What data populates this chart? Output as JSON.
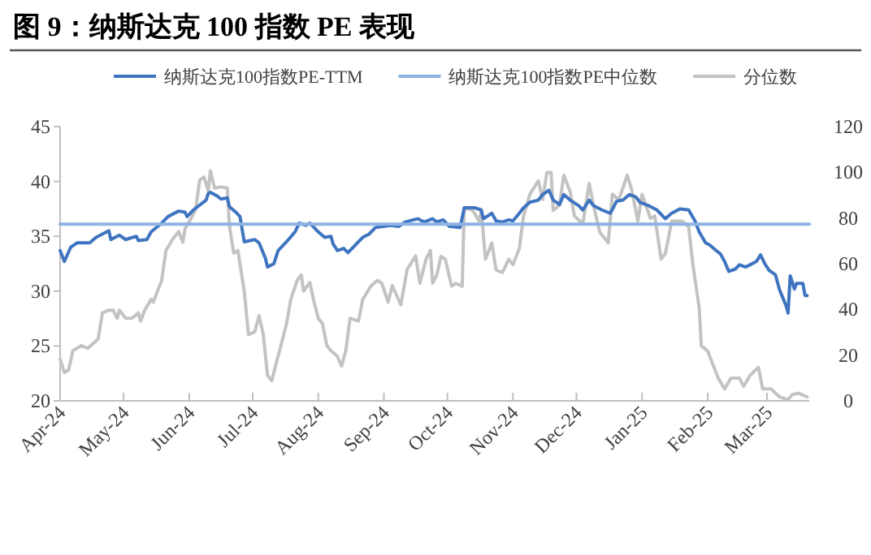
{
  "chart_data": {
    "type": "line",
    "title": "图 9：纳斯达克 100 指数 PE 表现",
    "legend": "top",
    "xlim": [
      "2024-04-01",
      "2025-03-21"
    ],
    "xticks": [
      {
        "value": "2024-04-01",
        "label": "Apr-24"
      },
      {
        "value": "2024-05-01",
        "label": "May-24"
      },
      {
        "value": "2024-06-01",
        "label": "Jun-24"
      },
      {
        "value": "2024-07-01",
        "label": "Jul-24"
      },
      {
        "value": "2024-08-01",
        "label": "Aug-24"
      },
      {
        "value": "2024-09-01",
        "label": "Sep-24"
      },
      {
        "value": "2024-10-01",
        "label": "Oct-24"
      },
      {
        "value": "2024-11-01",
        "label": "Nov-24"
      },
      {
        "value": "2024-12-01",
        "label": "Dec-24"
      },
      {
        "value": "2025-01-01",
        "label": "Jan-25"
      },
      {
        "value": "2025-02-01",
        "label": "Feb-25"
      },
      {
        "value": "2025-03-01",
        "label": "Mar-25"
      }
    ],
    "ylim": [
      20,
      45
    ],
    "yticks": [
      20,
      25,
      30,
      35,
      40,
      45
    ],
    "y2lim": [
      0,
      120
    ],
    "y2ticks": [
      0,
      20,
      40,
      60,
      80,
      100,
      120
    ],
    "series": [
      {
        "name": "纳斯达克100指数PE-TTM",
        "color": "#3f74c0",
        "x": [
          "2024-04-01",
          "2024-04-03",
          "2024-04-06",
          "2024-04-09",
          "2024-04-15",
          "2024-04-18",
          "2024-04-23",
          "2024-04-24",
          "2024-04-25",
          "2024-04-29",
          "2024-05-02",
          "2024-05-07",
          "2024-05-08",
          "2024-05-12",
          "2024-05-14",
          "2024-05-19",
          "2024-05-22",
          "2024-05-27",
          "2024-05-30",
          "2024-05-31",
          "2024-06-03",
          "2024-06-09",
          "2024-06-10",
          "2024-06-11",
          "2024-06-14",
          "2024-06-16",
          "2024-06-19",
          "2024-06-20",
          "2024-06-23",
          "2024-06-25",
          "2024-06-27",
          "2024-07-02",
          "2024-07-04",
          "2024-07-07",
          "2024-07-08",
          "2024-07-11",
          "2024-07-13",
          "2024-07-17",
          "2024-07-21",
          "2024-07-23",
          "2024-07-26",
          "2024-07-28",
          "2024-08-01",
          "2024-08-04",
          "2024-08-07",
          "2024-08-08",
          "2024-08-10",
          "2024-08-13",
          "2024-08-15",
          "2024-08-18",
          "2024-08-20",
          "2024-08-22",
          "2024-08-25",
          "2024-08-28",
          "2024-09-01",
          "2024-09-04",
          "2024-09-08",
          "2024-09-11",
          "2024-09-15",
          "2024-09-17",
          "2024-09-20",
          "2024-09-24",
          "2024-09-26",
          "2024-09-29",
          "2024-10-02",
          "2024-10-07",
          "2024-10-09",
          "2024-10-14",
          "2024-10-17",
          "2024-10-18",
          "2024-10-22",
          "2024-10-24",
          "2024-10-27",
          "2024-10-30",
          "2024-11-01",
          "2024-11-04",
          "2024-11-06",
          "2024-11-09",
          "2024-11-13",
          "2024-11-15",
          "2024-11-18",
          "2024-11-20",
          "2024-11-23",
          "2024-11-25",
          "2024-11-28",
          "2024-12-02",
          "2024-12-04",
          "2024-12-07",
          "2024-12-09",
          "2024-12-13",
          "2024-12-17",
          "2024-12-20",
          "2024-12-23",
          "2024-12-26",
          "2024-12-29",
          "2024-12-31",
          "2025-01-04",
          "2025-01-08",
          "2025-01-12",
          "2025-01-15",
          "2025-01-19",
          "2025-01-23",
          "2025-01-26",
          "2025-01-28",
          "2025-01-31",
          "2025-02-02",
          "2025-02-05",
          "2025-02-07",
          "2025-02-09",
          "2025-02-11",
          "2025-02-14",
          "2025-02-16",
          "2025-02-19",
          "2025-02-21",
          "2025-02-24",
          "2025-02-26",
          "2025-02-28",
          "2025-03-02",
          "2025-03-05",
          "2025-03-07",
          "2025-03-10",
          "2025-03-11",
          "2025-03-12",
          "2025-03-14",
          "2025-03-15",
          "2025-03-18",
          "2025-03-19",
          "2025-03-20"
        ],
        "values": [
          33.7,
          32.7,
          34.0,
          34.4,
          34.4,
          34.9,
          35.4,
          35.5,
          34.7,
          35.1,
          34.7,
          35.0,
          34.6,
          34.7,
          35.4,
          36.2,
          36.8,
          37.3,
          37.2,
          36.8,
          37.4,
          38.3,
          38.9,
          39.0,
          38.7,
          38.4,
          38.5,
          37.7,
          37.2,
          36.8,
          34.5,
          34.7,
          34.4,
          33.0,
          32.2,
          32.5,
          33.7,
          34.5,
          35.4,
          36.2,
          36.0,
          36.2,
          35.4,
          34.9,
          35.0,
          34.3,
          33.7,
          33.9,
          33.5,
          34.1,
          34.5,
          34.9,
          35.2,
          35.8,
          35.9,
          36.0,
          35.9,
          36.3,
          36.5,
          36.6,
          36.3,
          36.6,
          36.3,
          36.5,
          35.9,
          35.8,
          37.6,
          37.6,
          37.4,
          36.6,
          37.1,
          36.4,
          36.3,
          36.5,
          36.4,
          37.1,
          37.6,
          38.1,
          38.3,
          38.8,
          39.2,
          38.3,
          37.9,
          38.8,
          38.3,
          37.8,
          37.4,
          38.3,
          37.8,
          37.4,
          37.1,
          38.2,
          38.3,
          38.8,
          38.6,
          38.1,
          37.8,
          37.4,
          36.6,
          37.1,
          37.5,
          37.4,
          36.4,
          35.4,
          34.4,
          34.2,
          33.7,
          33.4,
          32.7,
          31.8,
          32.0,
          32.4,
          32.2,
          32.4,
          32.7,
          33.3,
          32.5,
          31.9,
          31.5,
          30.1,
          28.7,
          28.0,
          31.4,
          30.2,
          30.7,
          30.7,
          29.6,
          29.6
        ]
      },
      {
        "name": "纳斯达克100指数PE中位数",
        "color": "#8db3e2",
        "x": [
          "2024-04-01",
          "2025-03-21"
        ],
        "values": [
          36.1,
          36.1
        ]
      },
      {
        "name": "分位数",
        "axis": "y2",
        "color": "#c3c3c3",
        "x": [
          "2024-04-01",
          "2024-04-03",
          "2024-04-05",
          "2024-04-07",
          "2024-04-11",
          "2024-04-14",
          "2024-04-17",
          "2024-04-19",
          "2024-04-21",
          "2024-04-24",
          "2024-04-26",
          "2024-04-28",
          "2024-04-29",
          "2024-05-02",
          "2024-05-05",
          "2024-05-08",
          "2024-05-09",
          "2024-05-11",
          "2024-05-14",
          "2024-05-15",
          "2024-05-19",
          "2024-05-21",
          "2024-05-24",
          "2024-05-27",
          "2024-05-29",
          "2024-05-30",
          "2024-06-02",
          "2024-06-04",
          "2024-06-06",
          "2024-06-08",
          "2024-06-10",
          "2024-06-11",
          "2024-06-13",
          "2024-06-16",
          "2024-06-19",
          "2024-06-20",
          "2024-06-22",
          "2024-06-24",
          "2024-06-27",
          "2024-06-29",
          "2024-07-02",
          "2024-07-04",
          "2024-07-06",
          "2024-07-08",
          "2024-07-10",
          "2024-07-13",
          "2024-07-17",
          "2024-07-19",
          "2024-07-22",
          "2024-07-24",
          "2024-07-25",
          "2024-07-28",
          "2024-07-30",
          "2024-08-01",
          "2024-08-03",
          "2024-08-05",
          "2024-08-07",
          "2024-08-10",
          "2024-08-12",
          "2024-08-14",
          "2024-08-16",
          "2024-08-20",
          "2024-08-22",
          "2024-08-26",
          "2024-08-29",
          "2024-08-31",
          "2024-09-03",
          "2024-09-05",
          "2024-09-09",
          "2024-09-12",
          "2024-09-16",
          "2024-09-18",
          "2024-09-21",
          "2024-09-23",
          "2024-09-24",
          "2024-09-26",
          "2024-09-28",
          "2024-09-30",
          "2024-10-03",
          "2024-10-05",
          "2024-10-08",
          "2024-10-09",
          "2024-10-13",
          "2024-10-16",
          "2024-10-17",
          "2024-10-19",
          "2024-10-22",
          "2024-10-24",
          "2024-10-27",
          "2024-10-30",
          "2024-11-01",
          "2024-11-04",
          "2024-11-06",
          "2024-11-09",
          "2024-11-13",
          "2024-11-15",
          "2024-11-17",
          "2024-11-19",
          "2024-11-20",
          "2024-11-23",
          "2024-11-25",
          "2024-11-28",
          "2024-11-30",
          "2024-12-04",
          "2024-12-07",
          "2024-12-09",
          "2024-12-12",
          "2024-12-16",
          "2024-12-18",
          "2024-12-21",
          "2024-12-25",
          "2024-12-27",
          "2024-12-30",
          "2025-01-01",
          "2025-01-05",
          "2025-01-07",
          "2025-01-10",
          "2025-01-12",
          "2025-01-15",
          "2025-01-20",
          "2025-01-23",
          "2025-01-25",
          "2025-01-28",
          "2025-01-29",
          "2025-02-01",
          "2025-02-03",
          "2025-02-06",
          "2025-02-09",
          "2025-02-12",
          "2025-02-16",
          "2025-02-18",
          "2025-02-21",
          "2025-02-25",
          "2025-02-27",
          "2025-03-03",
          "2025-03-07",
          "2025-03-11",
          "2025-03-13",
          "2025-03-16",
          "2025-03-20"
        ],
        "values": [
          18.3,
          12.4,
          13.5,
          21.9,
          24.2,
          23.0,
          25.4,
          27.1,
          38.5,
          39.7,
          39.7,
          36.1,
          39.7,
          36.1,
          36.1,
          38.5,
          34.9,
          39.7,
          44.4,
          43.2,
          52.7,
          65.8,
          70.5,
          74.1,
          69.4,
          75.3,
          80.0,
          83.6,
          96.7,
          97.9,
          91.9,
          100.7,
          93.1,
          93.6,
          93.1,
          76.5,
          64.6,
          65.8,
          48.0,
          29.0,
          30.2,
          37.3,
          29.0,
          11.2,
          8.8,
          19.5,
          33.7,
          44.4,
          52.7,
          55.1,
          48.0,
          51.8,
          43.2,
          36.1,
          33.7,
          24.2,
          21.9,
          19.5,
          15.2,
          21.9,
          36.1,
          34.9,
          44.4,
          50.4,
          52.7,
          51.5,
          43.2,
          50.4,
          42.0,
          57.5,
          63.4,
          51.5,
          62.2,
          65.8,
          51.5,
          55.1,
          63.2,
          62.0,
          50.2,
          51.4,
          50.2,
          84.5,
          83.3,
          78.6,
          83.3,
          62.0,
          69.1,
          57.3,
          56.1,
          62.0,
          59.6,
          66.7,
          80.9,
          90.4,
          96.3,
          88.0,
          99.9,
          99.9,
          83.3,
          85.7,
          98.7,
          91.6,
          80.9,
          77.4,
          95.1,
          85.7,
          73.8,
          69.1,
          90.4,
          88.0,
          98.7,
          92.8,
          78.6,
          90.4,
          79.8,
          80.9,
          62.0,
          64.4,
          78.6,
          78.6,
          76.2,
          59.6,
          40.7,
          24.1,
          21.8,
          17.0,
          9.9,
          5.2,
          9.9,
          9.9,
          6.4,
          11.1,
          14.7,
          5.2,
          5.2,
          1.7,
          0.5,
          2.8,
          3.3,
          1.7
        ]
      }
    ]
  }
}
